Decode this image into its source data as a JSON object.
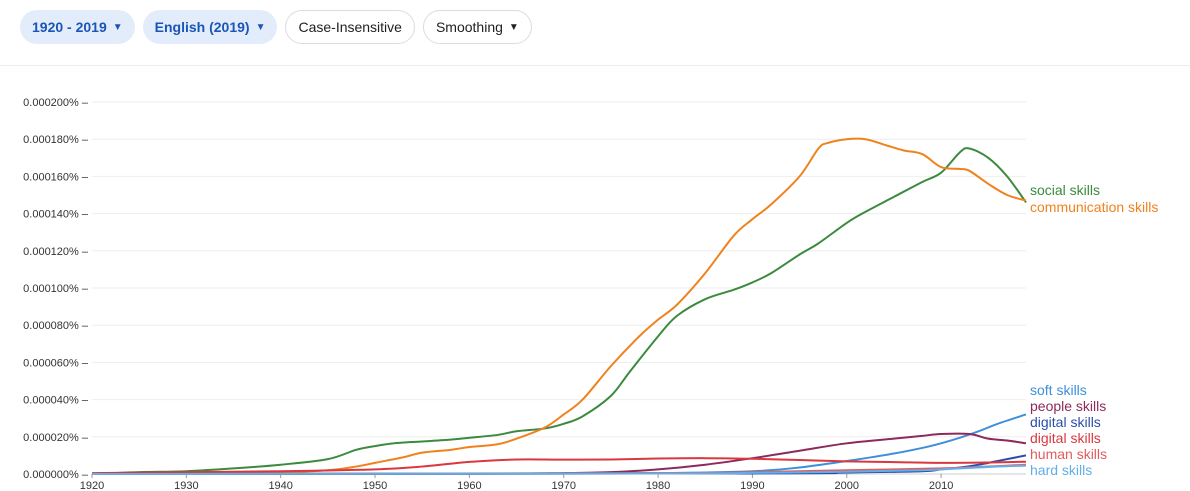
{
  "toolbar": {
    "year_range": "1920 - 2019",
    "corpus": "English (2019)",
    "case": "Case-Insensitive",
    "smoothing": "Smoothing"
  },
  "chart_data": {
    "type": "line",
    "xlim": [
      1920,
      2019
    ],
    "ylim": [
      0,
      0.0002
    ],
    "y_ticks": [
      0,
      2e-05,
      4e-05,
      6e-05,
      8e-05,
      0.0001,
      0.00012,
      0.00014,
      0.00016,
      0.00018,
      0.0002
    ],
    "y_tick_labels": [
      "0.000000%",
      "0.000020%",
      "0.000040%",
      "0.000060%",
      "0.000080%",
      "0.000100%",
      "0.000120%",
      "0.000140%",
      "0.000160%",
      "0.000180%",
      "0.000200%"
    ],
    "x_ticks": [
      1920,
      1930,
      1940,
      1950,
      1960,
      1970,
      1980,
      1990,
      2000,
      2010
    ],
    "x_tick_labels": [
      "1920",
      "1930",
      "1940",
      "1950",
      "1960",
      "1970",
      "1980",
      "1990",
      "2000",
      "2010"
    ],
    "grid": true,
    "series": [
      {
        "name": "social skills",
        "color": "#3b8a3e",
        "x": [
          1920,
          1925,
          1930,
          1935,
          1940,
          1945,
          1948,
          1950,
          1952,
          1955,
          1958,
          1960,
          1963,
          1965,
          1968,
          1970,
          1972,
          1975,
          1977,
          1980,
          1982,
          1985,
          1988,
          1990,
          1992,
          1995,
          1997,
          2000,
          2002,
          2005,
          2008,
          2010,
          2012,
          2013,
          2015,
          2017,
          2019
        ],
        "y": [
          0,
          1e-06,
          1.5e-06,
          3e-06,
          5e-06,
          8e-06,
          1.3e-05,
          1.5e-05,
          1.65e-05,
          1.75e-05,
          1.85e-05,
          1.95e-05,
          2.1e-05,
          2.3e-05,
          2.45e-05,
          2.7e-05,
          3.1e-05,
          4.2e-05,
          5.5e-05,
          7.4e-05,
          8.5e-05,
          9.4e-05,
          9.9e-05,
          0.000103,
          0.000108,
          0.000118,
          0.000124,
          0.000135,
          0.000141,
          0.000149,
          0.000157,
          0.000162,
          0.000173,
          0.000175,
          0.00017,
          0.00016,
          0.000146
        ]
      },
      {
        "name": "communication skills",
        "color": "#f0821e",
        "x": [
          1920,
          1930,
          1940,
          1945,
          1948,
          1950,
          1953,
          1955,
          1958,
          1960,
          1963,
          1965,
          1968,
          1970,
          1972,
          1975,
          1978,
          1980,
          1982,
          1985,
          1988,
          1990,
          1992,
          1995,
          1997,
          1998,
          2000,
          2002,
          2004,
          2006,
          2008,
          2010,
          2012,
          2013,
          2015,
          2017,
          2019
        ],
        "y": [
          0,
          5e-07,
          1e-06,
          2e-06,
          4e-06,
          6e-06,
          9e-06,
          1.15e-05,
          1.3e-05,
          1.45e-05,
          1.6e-05,
          1.9e-05,
          2.5e-05,
          3.2e-05,
          4e-05,
          5.8e-05,
          7.4e-05,
          8.3e-05,
          9.1e-05,
          0.000108,
          0.000128,
          0.000137,
          0.000145,
          0.00016,
          0.000175,
          0.000178,
          0.00018,
          0.00018,
          0.000177,
          0.000174,
          0.000172,
          0.000165,
          0.000164,
          0.000163,
          0.000156,
          0.00015,
          0.000147
        ]
      },
      {
        "name": "soft skills",
        "color": "#3d8fdb",
        "x": [
          1920,
          1960,
          1980,
          1990,
          1995,
          2000,
          2005,
          2008,
          2010,
          2012,
          2014,
          2016,
          2019
        ],
        "y": [
          0,
          2e-07,
          5e-07,
          1.5e-06,
          3.5e-06,
          7e-06,
          1.1e-05,
          1.4e-05,
          1.65e-05,
          1.95e-05,
          2.3e-05,
          2.7e-05,
          3.2e-05
        ]
      },
      {
        "name": "people skills",
        "color": "#8c2a5c",
        "x": [
          1920,
          1960,
          1970,
          1975,
          1980,
          1985,
          1990,
          1995,
          2000,
          2005,
          2008,
          2010,
          2013,
          2015,
          2017,
          2019
        ],
        "y": [
          0,
          2e-07,
          5e-07,
          1e-06,
          2.5e-06,
          5e-06,
          8.5e-06,
          1.25e-05,
          1.65e-05,
          1.9e-05,
          2.05e-05,
          2.15e-05,
          2.15e-05,
          1.9e-05,
          1.8e-05,
          1.65e-05
        ]
      },
      {
        "name": "digital skills",
        "color": "#2a4fa8",
        "x": [
          1920,
          1990,
          2000,
          2008,
          2010,
          2012,
          2014,
          2016,
          2019
        ],
        "y": [
          0,
          3e-07,
          8e-07,
          1.5e-06,
          2.5e-06,
          3.5e-06,
          5e-06,
          7e-06,
          1e-05
        ]
      },
      {
        "name": "digital skills",
        "color": "#d9383e",
        "x": [
          1920,
          1930,
          1940,
          1950,
          1955,
          1960,
          1965,
          1970,
          1975,
          1980,
          1985,
          1990,
          1995,
          2000,
          2005,
          2010,
          2015,
          2019
        ],
        "y": [
          5e-07,
          1e-06,
          1.5e-06,
          2.5e-06,
          4e-06,
          6.5e-06,
          7.8e-06,
          7.7e-06,
          7.8e-06,
          8.3e-06,
          8.5e-06,
          8.2e-06,
          7.5e-06,
          6.8e-06,
          6.4e-06,
          6e-06,
          6.2e-06,
          6.6e-06
        ]
      },
      {
        "name": "human skills",
        "color": "#e25c5c",
        "x": [
          1920,
          1980,
          1990,
          2000,
          2010,
          2015,
          2019
        ],
        "y": [
          0,
          5e-07,
          1e-06,
          2e-06,
          3e-06,
          4e-06,
          5e-06
        ]
      },
      {
        "name": "hard skills",
        "color": "#62aee8",
        "x": [
          1920,
          1980,
          1990,
          2000,
          2008,
          2012,
          2016,
          2019
        ],
        "y": [
          0,
          3e-07,
          6e-07,
          1.2e-06,
          2e-06,
          3e-06,
          4e-06,
          4.5e-06
        ]
      }
    ]
  }
}
